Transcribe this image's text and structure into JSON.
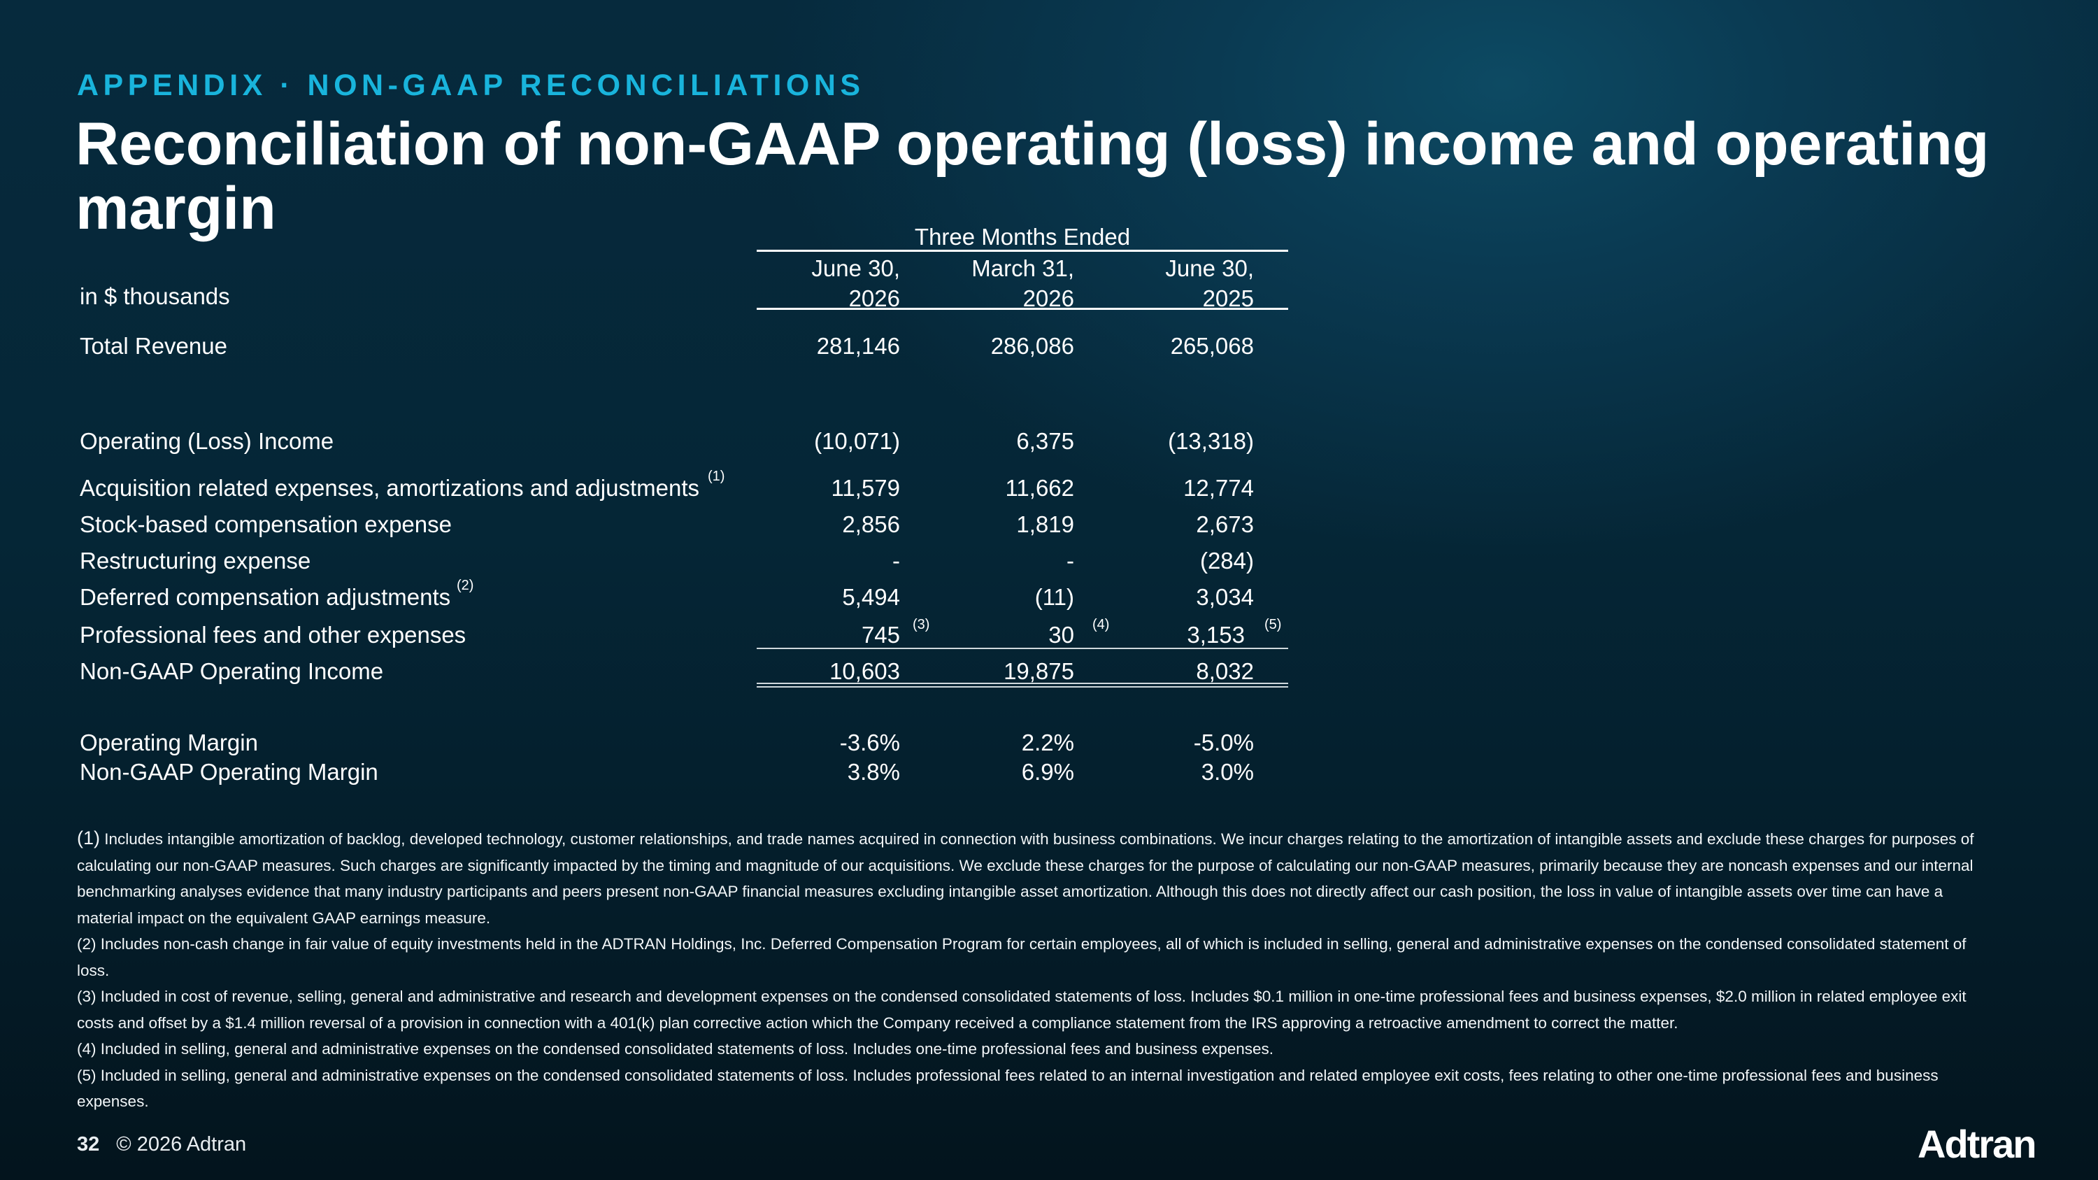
{
  "header": {
    "eyebrow": "APPENDIX · NON-GAAP RECONCILIATIONS",
    "title": "Reconciliation of non-GAAP operating (loss) income and operating margin"
  },
  "table": {
    "units_label": "in $ thousands",
    "period_header": "Three Months Ended",
    "columns": [
      {
        "line1": "June  30,",
        "line2": "2026"
      },
      {
        "line1": "March  31,",
        "line2": "2026"
      },
      {
        "line1": "June  30,",
        "line2": "2025"
      }
    ],
    "rows": [
      {
        "label": "Total Revenue",
        "values": [
          "281,146",
          "286,086",
          "265,068"
        ]
      },
      {
        "label": "Operating (Loss) Income",
        "values": [
          "(10,071)",
          "6,375",
          "(13,318)"
        ]
      },
      {
        "label": "Acquisition related expenses, amortizations and adjustments",
        "note": "(1)",
        "values": [
          "11,579",
          "11,662",
          "12,774"
        ]
      },
      {
        "label": "Stock-based compensation expense",
        "values": [
          "2,856",
          "1,819",
          "2,673"
        ]
      },
      {
        "label": "Restructuring expense",
        "values": [
          "-",
          "-",
          "(284)"
        ]
      },
      {
        "label": "Deferred compensation adjustments",
        "note": "(2)",
        "values": [
          "5,494",
          "(11)",
          "3,034"
        ]
      },
      {
        "label": "Professional fees and other expenses",
        "values": [
          "745",
          "30",
          "3,153"
        ],
        "value_notes": [
          "(3)",
          "(4)",
          "(5)"
        ]
      },
      {
        "label": "Non-GAAP Operating Income",
        "values": [
          "10,603",
          "19,875",
          "8,032"
        ]
      },
      {
        "label": "Operating Margin",
        "values": [
          "-3.6%",
          "2.2%",
          "-5.0%"
        ]
      },
      {
        "label": "Non-GAAP Operating Margin",
        "values": [
          "3.8%",
          "6.9%",
          "3.0%"
        ]
      }
    ]
  },
  "footnotes": {
    "n1_marker": "(1)",
    "n1": " Includes intangible amortization of backlog, developed technology, customer relationships, and trade names acquired in connection with business combinations. We incur charges relating to the amortization of intangible assets and exclude these charges for purposes of calculating our non-GAAP measures. Such charges are significantly impacted by the timing and magnitude of our acquisitions. We exclude these charges for the purpose of calculating our non-GAAP measures, primarily because they are noncash expenses and our internal benchmarking analyses evidence that many industry participants and peers present non-GAAP financial measures excluding intangible asset amortization. Although this does not directly affect our cash position, the loss in value of intangible assets over time can have a material impact on the equivalent GAAP earnings measure.",
    "n2": "(2) Includes non-cash change in fair value of equity investments held in the ADTRAN Holdings, Inc. Deferred Compensation Program for certain employees, all of which is included in selling, general and administrative expenses on the condensed consolidated statement of loss.",
    "n3": "(3) Included in cost of revenue, selling, general and administrative  and research and development expenses on the condensed consolidated statements of loss. Includes $0.1 million in one-time professional fees and business expenses, $2.0 million in related employee exit costs and offset by a $1.4 million reversal of a provision in connection with a 401(k) plan corrective action which  the Company received a compliance statement from the IRS approving a retroactive amendment to correct the matter.",
    "n4": "(4) Included in selling, general and administrative expenses on the condensed consolidated statements of loss. Includes one-time professional fees and business expenses.",
    "n5": "(5) Included in selling, general and administrative expenses on the condensed consolidated statements of loss. Includes professional fees related to an internal investigation and related employee exit costs, fees relating to other one-time professional fees and business expenses."
  },
  "footer": {
    "page_number": "32",
    "copyright": "© 2026 Adtran",
    "logo_text": "Adtran"
  }
}
